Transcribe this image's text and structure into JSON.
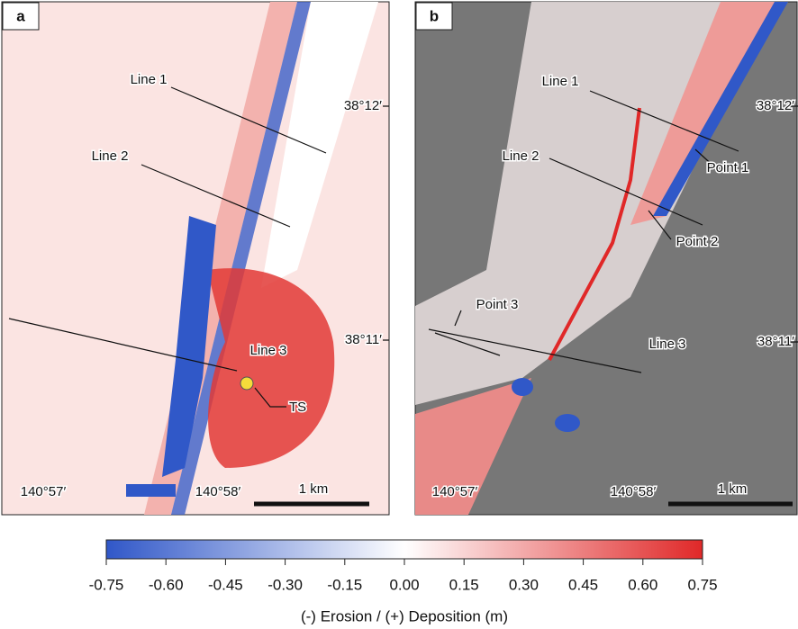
{
  "panels": [
    {
      "label": "a",
      "annotations": {
        "line1": "Line 1",
        "line2": "Line 2",
        "line3": "Line 3",
        "ts": "TS",
        "lat1": "38°12′",
        "lat2": "38°11′",
        "lon1": "140°57′",
        "lon2": "140°58′",
        "scale": "1 km"
      }
    },
    {
      "label": "b",
      "annotations": {
        "line1": "Line 1",
        "line2": "Line 2",
        "line3": "Line 3",
        "point1": "Point 1",
        "point2": "Point 2",
        "point3": "Point 3",
        "lat1": "38°12′",
        "lat2": "38°11′",
        "lon1": "140°57′",
        "lon2": "140°58′",
        "scale": "1 km"
      }
    }
  ],
  "colorbar": {
    "lim": [
      -0.75,
      0.75
    ],
    "colors": [
      "#3057c8",
      "#ffffff",
      "#e02828"
    ],
    "ticks": [
      -0.75,
      {
        "value": -0.6,
        "label": "-0.60"
      },
      -0.45,
      {
        "value": -0.3,
        "label": "-0.30"
      },
      -0.15,
      {
        "value": 0,
        "label": "0.00"
      },
      0.15,
      {
        "value": 0.3,
        "label": "0.30"
      },
      0.45,
      {
        "value": 0.6,
        "label": "0.60"
      },
      0.75
    ],
    "label": "(-) Erosion / (+) Deposition (m)"
  }
}
